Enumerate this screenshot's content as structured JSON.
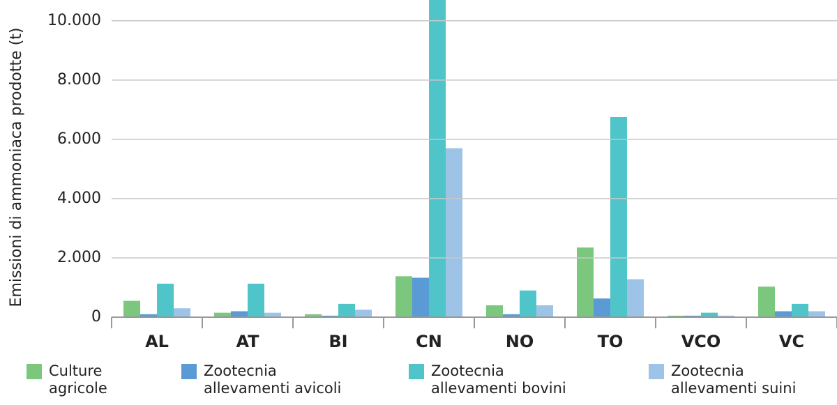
{
  "chart_data": {
    "type": "bar",
    "y_label": "Emissioni di ammoniaca prodotte (t)",
    "categories": [
      "AL",
      "AT",
      "BI",
      "CN",
      "NO",
      "TO",
      "VCO",
      "VC"
    ],
    "series": [
      {
        "name": "Culture\nagricole",
        "color": "#7cc77e",
        "values": [
          550,
          150,
          100,
          1380,
          400,
          2350,
          50,
          1030
        ]
      },
      {
        "name": "Zootecnia\nallevamenti avicoli",
        "color": "#5b9bd5",
        "values": [
          100,
          200,
          50,
          1330,
          100,
          630,
          50,
          200
        ]
      },
      {
        "name": "Zootecnia\nallevamenti bovini",
        "color": "#4fc4c9",
        "values": [
          1130,
          1130,
          450,
          11000,
          900,
          6750,
          150,
          450
        ]
      },
      {
        "name": "Zootecnia\nallevamenti suini",
        "color": "#9dc3e6",
        "values": [
          300,
          150,
          250,
          5700,
          400,
          1280,
          50,
          200
        ]
      }
    ],
    "ylim": [
      0,
      10700
    ],
    "yticks": [
      0,
      {
        "value": 2000,
        "label": "2.000"
      },
      {
        "value": 4000,
        "label": "4.000"
      },
      {
        "value": 6000,
        "label": "6.000"
      },
      {
        "value": 8000,
        "label": "8.000"
      },
      {
        "value": 10000,
        "label": "10.000"
      }
    ],
    "grid": true
  }
}
